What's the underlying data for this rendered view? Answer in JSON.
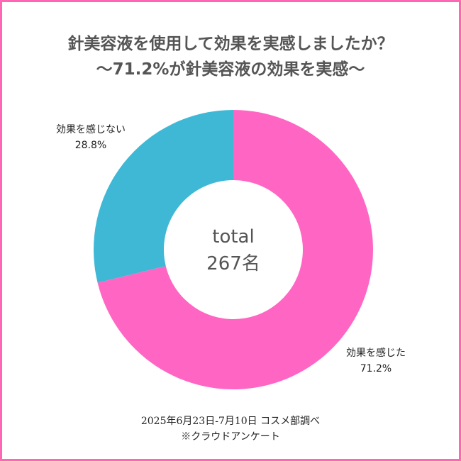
{
  "title": {
    "line1": "針美容液を使用して効果を実感しましたか？",
    "line2": "〜71.2%が針美容液の効果を実感〜"
  },
  "chart_data": {
    "type": "pie",
    "variant": "donut",
    "categories": [
      "効果を感じた",
      "効果を感じない"
    ],
    "values": [
      71.2,
      28.8
    ],
    "labels": [
      "71.2%",
      "28.8%"
    ],
    "colors": [
      "#ff66c4",
      "#3fb8d6"
    ],
    "center_text": [
      "total",
      "267名"
    ],
    "start_angle": "12 o'clock",
    "direction": "clockwise"
  },
  "footer": {
    "line1": "2025年6月23日-7月10日 コスメ部調べ",
    "line2": "※クラウドアンケート"
  },
  "colors": {
    "border": "#ff66b3",
    "title_text": "#555555"
  }
}
